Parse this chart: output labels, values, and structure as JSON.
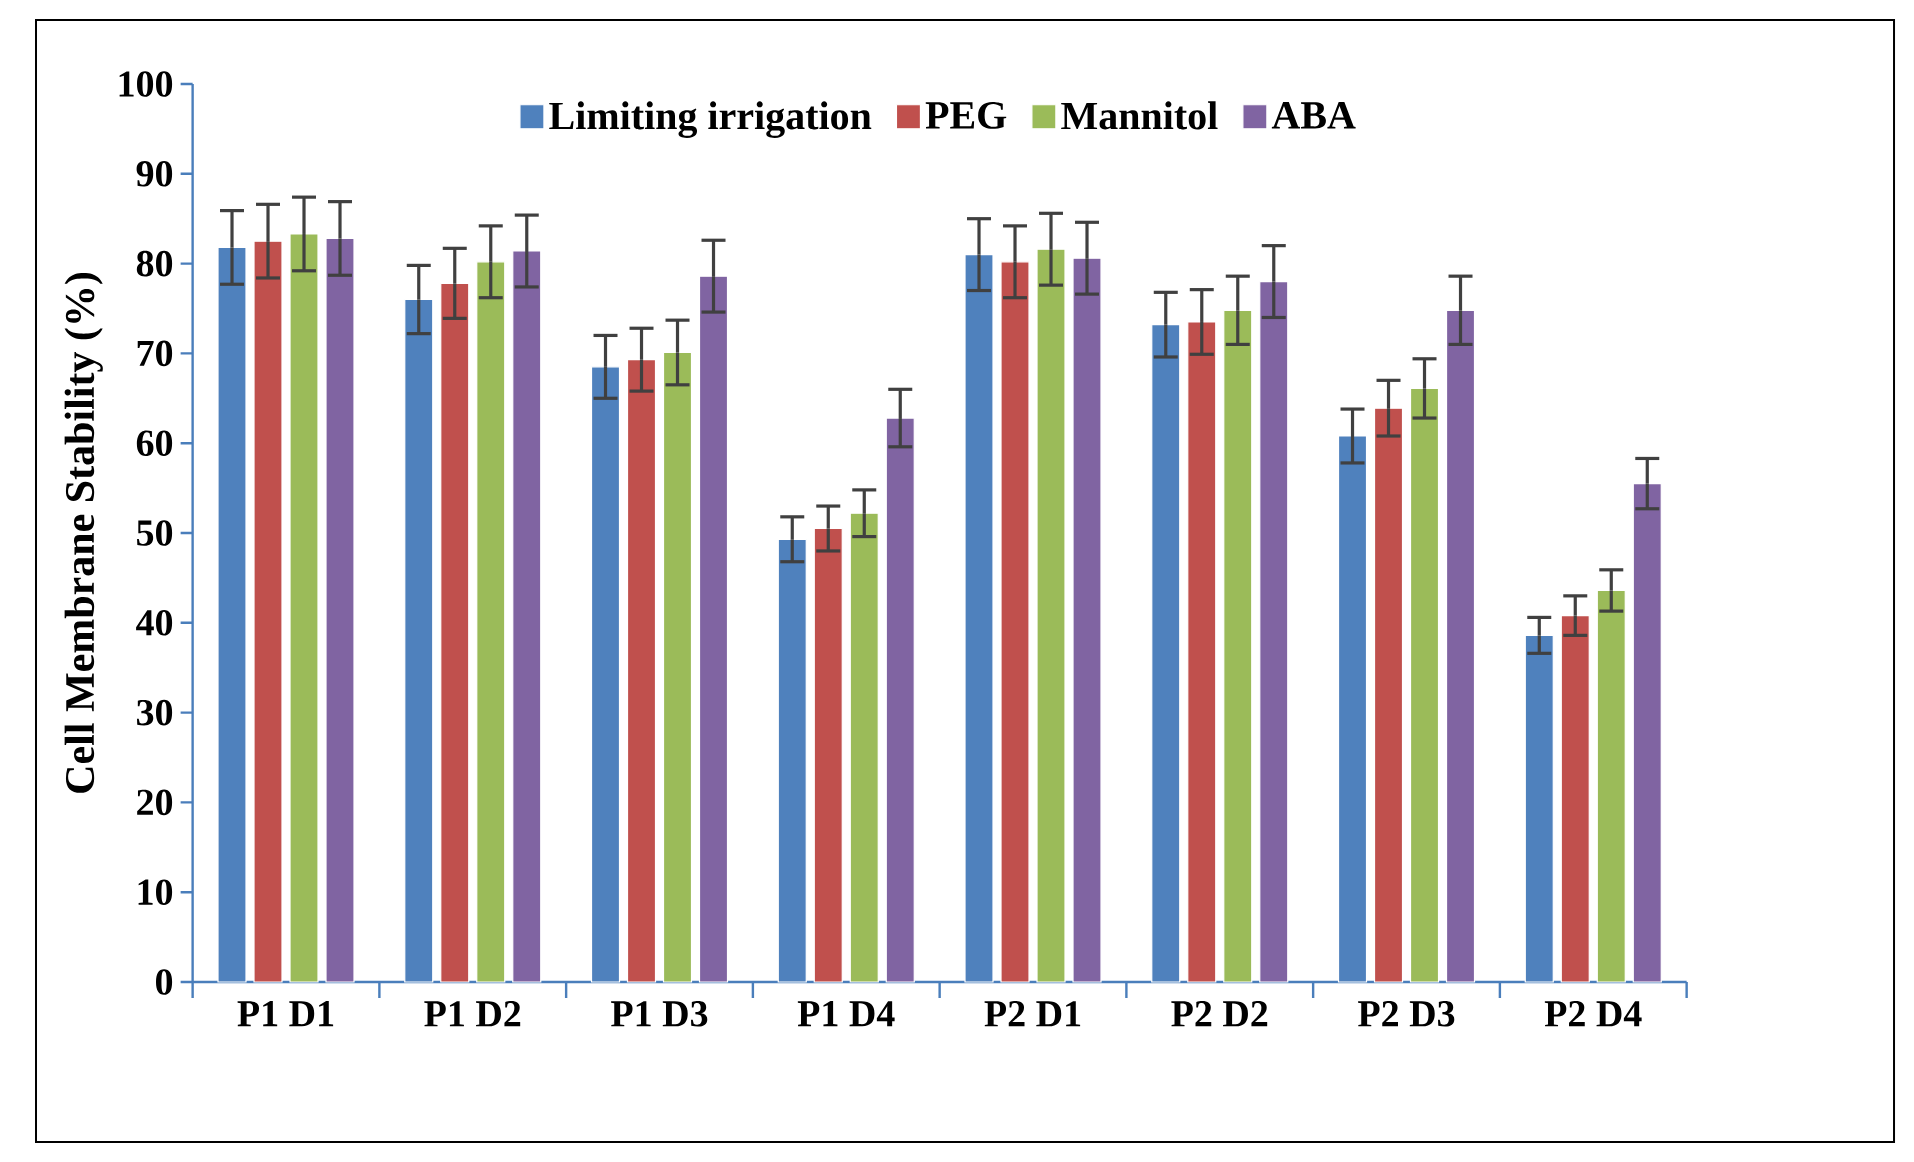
{
  "chart_data": {
    "type": "bar",
    "ylabel": "Cell Membrane Stability (%)",
    "categories": [
      "P1 D1",
      "P1 D2",
      "P1 D3",
      "P1 D4",
      "P2 D1",
      "P2 D2",
      "P2 D3",
      "P2 D4"
    ],
    "ylim": [
      0,
      100
    ],
    "yticks": [
      0,
      10,
      20,
      30,
      40,
      50,
      60,
      70,
      80,
      90,
      100
    ],
    "legend": "top",
    "series": [
      {
        "name": "Limiting irrigation",
        "color": "#4f81bd",
        "values": [
          81.8,
          76,
          68.5,
          49.3,
          81,
          73.2,
          60.8,
          38.6
        ],
        "errors": [
          4.1,
          3.8,
          3.5,
          2.5,
          4,
          3.6,
          3,
          2
        ]
      },
      {
        "name": "PEG",
        "color": "#c0504d",
        "values": [
          82.5,
          77.8,
          69.3,
          50.5,
          80.2,
          73.5,
          63.9,
          40.8
        ],
        "errors": [
          4.1,
          3.9,
          3.5,
          2.5,
          4,
          3.6,
          3.1,
          2.2
        ]
      },
      {
        "name": "Mannitol",
        "color": "#9bbb59",
        "values": [
          83.3,
          80.2,
          70.1,
          52.2,
          81.6,
          74.8,
          66.1,
          43.6
        ],
        "errors": [
          4.1,
          4,
          3.6,
          2.6,
          4,
          3.8,
          3.3,
          2.3
        ]
      },
      {
        "name": "ABA",
        "color": "#8064a2",
        "values": [
          82.8,
          81.4,
          78.6,
          62.8,
          80.6,
          78,
          74.8,
          55.5
        ],
        "errors": [
          4.1,
          4,
          4,
          3.2,
          4,
          4,
          3.8,
          2.8
        ]
      }
    ]
  }
}
